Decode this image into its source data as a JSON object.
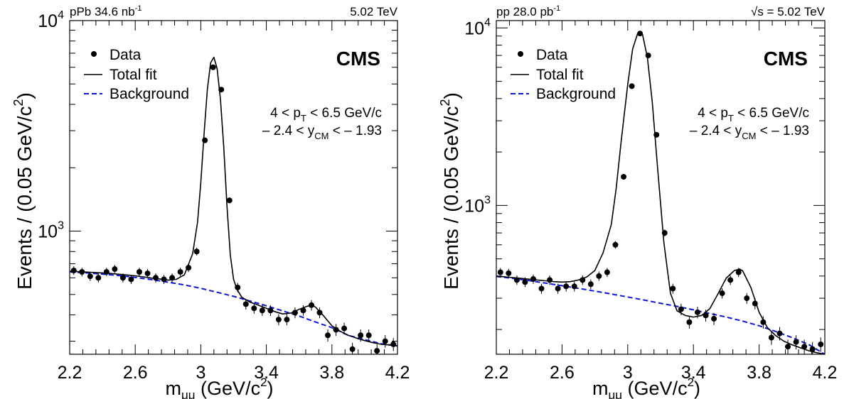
{
  "chart_data": [
    {
      "type": "scatter",
      "header_left": "pPb 34.6 nb",
      "header_left_sup": "-1",
      "header_right": "5.02 TeV",
      "brand": "CMS",
      "cut_pt": {
        "a": "4 < p",
        "sub": "T",
        "b": " < 6.5 GeV/c"
      },
      "cut_y": {
        "a": "– 2.4 < y",
        "sub": "CM",
        "b": " < – 1.93"
      },
      "xlabel": {
        "a": "m",
        "sub": "μμ",
        "b": " (GeV/c",
        "sup": "2",
        "c": ")"
      },
      "ylabel": {
        "a": "Events / (0.05 GeV/c",
        "sup": "2",
        "b": ")"
      },
      "xlim": [
        2.2,
        4.2
      ],
      "ylim": [
        260,
        10000
      ],
      "y_scale": "log",
      "xticks": [
        "2.2",
        "2.6",
        "3",
        "3.4",
        "3.8",
        "4.2"
      ],
      "yticks": [
        {
          "base": "10",
          "exp": "3",
          "value": 1000
        },
        {
          "base": "10",
          "exp": "4",
          "value": 10000
        }
      ],
      "legend": {
        "position": "top-left",
        "data": "Data",
        "fit": "Total fit",
        "background": "Background"
      },
      "series": [
        {
          "name": "Data",
          "x": [
            2.225,
            2.275,
            2.325,
            2.375,
            2.425,
            2.475,
            2.525,
            2.575,
            2.625,
            2.675,
            2.725,
            2.775,
            2.825,
            2.875,
            2.925,
            2.975,
            3.025,
            3.075,
            3.125,
            3.175,
            3.225,
            3.275,
            3.325,
            3.375,
            3.425,
            3.475,
            3.525,
            3.575,
            3.625,
            3.675,
            3.725,
            3.775,
            3.825,
            3.875,
            3.925,
            3.975,
            4.025,
            4.075,
            4.125,
            4.175
          ],
          "y": [
            650,
            640,
            610,
            600,
            640,
            660,
            600,
            590,
            640,
            630,
            600,
            590,
            600,
            640,
            670,
            800,
            2700,
            6000,
            4700,
            1400,
            540,
            450,
            430,
            420,
            420,
            380,
            380,
            410,
            420,
            445,
            410,
            320,
            340,
            345,
            275,
            320,
            320,
            270,
            300,
            290
          ]
        },
        {
          "name": "Total fit",
          "x": [
            2.2,
            2.25,
            2.3,
            2.35,
            2.4,
            2.45,
            2.5,
            2.55,
            2.6,
            2.65,
            2.7,
            2.75,
            2.8,
            2.85,
            2.9,
            2.95,
            2.98,
            3.0,
            3.02,
            3.04,
            3.06,
            3.08,
            3.1,
            3.12,
            3.14,
            3.16,
            3.18,
            3.2,
            3.22,
            3.25,
            3.3,
            3.35,
            3.4,
            3.45,
            3.5,
            3.55,
            3.6,
            3.65,
            3.68,
            3.7,
            3.75,
            3.8,
            3.85,
            3.9,
            3.95,
            4.0,
            4.05,
            4.1,
            4.15,
            4.2
          ],
          "y": [
            645,
            642,
            639,
            636,
            633,
            629,
            624,
            619,
            613,
            606,
            598,
            592,
            585,
            590,
            620,
            780,
            1100,
            1700,
            2900,
            4700,
            6300,
            6700,
            5900,
            4200,
            2500,
            1300,
            770,
            590,
            530,
            485,
            460,
            445,
            430,
            415,
            404,
            408,
            425,
            440,
            445,
            435,
            395,
            355,
            335,
            320,
            310,
            302,
            295,
            290,
            288,
            285
          ]
        },
        {
          "name": "Background",
          "x": [
            2.2,
            2.3,
            2.4,
            2.5,
            2.6,
            2.7,
            2.8,
            2.9,
            3.0,
            3.1,
            3.2,
            3.3,
            3.4,
            3.5,
            3.6,
            3.7,
            3.8,
            3.9,
            4.0,
            4.1,
            4.2
          ],
          "y": [
            640,
            633,
            625,
            615,
            603,
            588,
            572,
            555,
            535,
            512,
            490,
            466,
            442,
            418,
            395,
            370,
            348,
            320,
            305,
            292,
            285
          ]
        }
      ]
    },
    {
      "type": "scatter",
      "header_left": "pp 28.0 pb",
      "header_left_sup": "-1",
      "header_right": "s = 5.02 TeV",
      "header_right_prefix": "√",
      "brand": "CMS",
      "cut_pt": {
        "a": "4 < p",
        "sub": "T",
        "b": " < 6.5 GeV/c"
      },
      "cut_y": {
        "a": "– 2.4 < y",
        "sub": "CM",
        "b": " < – 1.93"
      },
      "xlabel": {
        "a": "m",
        "sub": "μμ",
        "b": " (GeV/c",
        "sup": "2",
        "c": ")"
      },
      "ylabel": {
        "a": "Events / (0.05 GeV/c",
        "sup": "2",
        "b": ")"
      },
      "xlim": [
        2.2,
        4.2
      ],
      "ylim": [
        145,
        11000
      ],
      "y_scale": "log",
      "xticks": [
        "2.2",
        "2.6",
        "3",
        "3.4",
        "3.8",
        "4.2"
      ],
      "yticks": [
        {
          "base": "10",
          "exp": "3",
          "value": 1000
        },
        {
          "base": "10",
          "exp": "4",
          "value": 10000
        }
      ],
      "legend": {
        "position": "top-left",
        "data": "Data",
        "fit": "Total fit",
        "background": "Background"
      },
      "series": [
        {
          "name": "Data",
          "x": [
            2.225,
            2.275,
            2.325,
            2.375,
            2.425,
            2.475,
            2.525,
            2.575,
            2.625,
            2.675,
            2.725,
            2.775,
            2.825,
            2.875,
            2.925,
            2.975,
            3.025,
            3.075,
            3.125,
            3.175,
            3.225,
            3.275,
            3.325,
            3.375,
            3.425,
            3.475,
            3.525,
            3.575,
            3.625,
            3.675,
            3.725,
            3.775,
            3.825,
            3.875,
            3.925,
            3.975,
            4.025,
            4.075,
            4.125,
            4.175
          ],
          "y": [
            420,
            415,
            380,
            370,
            385,
            340,
            380,
            340,
            350,
            350,
            380,
            360,
            400,
            420,
            600,
            1450,
            4700,
            9300,
            7000,
            2500,
            700,
            340,
            260,
            220,
            250,
            240,
            230,
            320,
            380,
            420,
            300,
            280,
            220,
            180,
            190,
            160,
            170,
            160,
            155,
            165
          ]
        },
        {
          "name": "Total fit",
          "x": [
            2.2,
            2.25,
            2.3,
            2.35,
            2.4,
            2.45,
            2.5,
            2.55,
            2.6,
            2.65,
            2.7,
            2.75,
            2.8,
            2.85,
            2.9,
            2.93,
            2.96,
            3.0,
            3.03,
            3.06,
            3.09,
            3.12,
            3.15,
            3.18,
            3.22,
            3.26,
            3.3,
            3.35,
            3.4,
            3.45,
            3.5,
            3.55,
            3.6,
            3.65,
            3.68,
            3.7,
            3.75,
            3.8,
            3.85,
            3.9,
            3.95,
            4.0,
            4.05,
            4.1,
            4.15,
            4.2
          ],
          "y": [
            400,
            396,
            392,
            388,
            384,
            380,
            376,
            372,
            370,
            372,
            380,
            395,
            430,
            540,
            780,
            1250,
            2300,
            4800,
            7600,
            9300,
            9200,
            6800,
            3800,
            1700,
            620,
            320,
            255,
            240,
            235,
            240,
            262,
            318,
            390,
            430,
            438,
            428,
            345,
            250,
            205,
            185,
            172,
            164,
            158,
            152,
            148,
            145
          ]
        },
        {
          "name": "Background",
          "x": [
            2.2,
            2.3,
            2.4,
            2.5,
            2.6,
            2.7,
            2.8,
            2.9,
            3.0,
            3.1,
            3.2,
            3.3,
            3.4,
            3.5,
            3.6,
            3.7,
            3.8,
            3.9,
            4.0,
            4.1,
            4.2
          ],
          "y": [
            398,
            388,
            377,
            365,
            353,
            341,
            329,
            317,
            305,
            293,
            281,
            270,
            258,
            246,
            235,
            223,
            210,
            195,
            180,
            165,
            145
          ]
        }
      ]
    }
  ]
}
